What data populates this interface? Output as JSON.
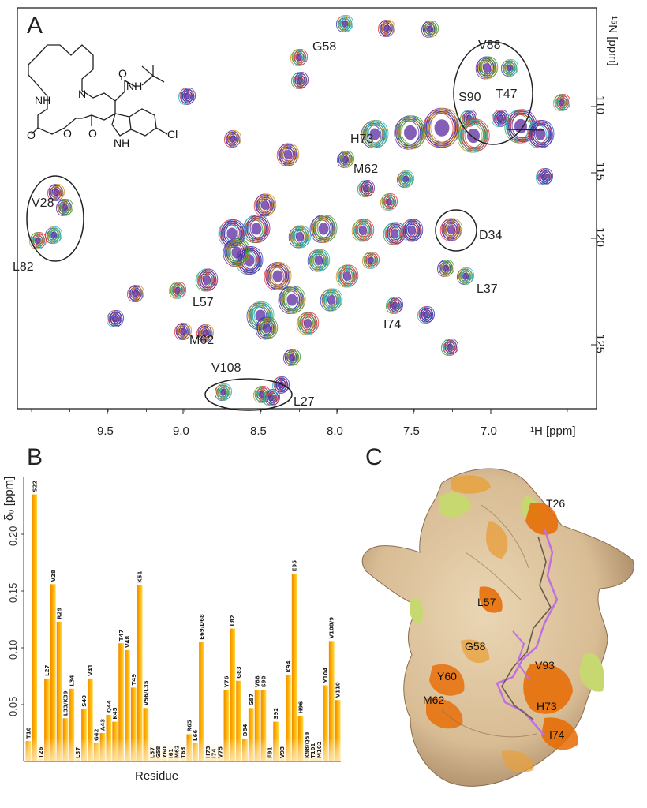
{
  "panels": {
    "a": "A",
    "b": "B",
    "c": "C"
  },
  "colors": {
    "red": "#e0303a",
    "purple": "#5a2aa0",
    "blue": "#2a3ab8",
    "orange": "#f08a00",
    "yellow": "#ffd23a",
    "surface": "#dcc4a0",
    "hot": "#e86a00",
    "green": "#c8d870",
    "ligand": "#c070e0"
  },
  "nmr": {
    "x_unit": "¹H [ppm]",
    "y_unit": "¹⁵N [ppm]",
    "x_ticks": [
      "9.5",
      "9.0",
      "8.5",
      "8.0",
      "7.5",
      "7.0"
    ],
    "y_ticks": [
      "110",
      "115",
      "120",
      "125"
    ],
    "labels": {
      "G58": "G58",
      "V88": "V88",
      "S90": "S90",
      "T47": "T47",
      "H73": "H73",
      "M62a": "M62",
      "V28": "V28",
      "L82": "L82",
      "D34": "D34",
      "L37": "L37",
      "L57": "L57",
      "I74": "I74",
      "M62b": "M62",
      "V108": "V108",
      "L27": "L27"
    },
    "structure_labels": {
      "NH1": "NH",
      "N": "N",
      "O1": "O",
      "NH2": "NH",
      "O2": "O",
      "O3": "O",
      "O4": "O",
      "NH3": "NH",
      "Cl": "Cl"
    }
  },
  "chart_data": {
    "type": "bar",
    "ylabel": "δ₀ [ppm]",
    "xlabel": "Residue",
    "ylim": [
      0,
      0.25
    ],
    "yticks": [
      "0.05",
      "0.10",
      "0.15",
      "0.20"
    ],
    "categories": [
      "T10",
      "S22",
      "T26",
      "L27",
      "V28",
      "R29",
      "L33/K39",
      "L34",
      "L37",
      "S40",
      "V41",
      "G42",
      "A43",
      "Q44",
      "K45",
      "T47",
      "V48",
      "T49",
      "K51",
      "V56/L35",
      "L57",
      "G58",
      "Y60",
      "I61",
      "M62",
      "T63",
      "R65",
      "L66",
      "E69/D68",
      "H73",
      "I74",
      "V75",
      "Y76",
      "L82",
      "G83",
      "D84",
      "G87",
      "V88",
      "S90",
      "F91",
      "S92",
      "V93",
      "K94",
      "E95",
      "H96",
      "K98/Q59",
      "T101",
      "M102",
      "Y104",
      "V108/9",
      "V110"
    ],
    "values": [
      0.018,
      0.235,
      0.0,
      0.073,
      0.156,
      0.123,
      0.038,
      0.064,
      0.0,
      0.046,
      0.073,
      0.016,
      0.025,
      0.041,
      0.035,
      0.104,
      0.098,
      0.065,
      0.155,
      0.047,
      0.0,
      0.0,
      0.0,
      0.0,
      0.0,
      0.0,
      0.024,
      0.016,
      0.105,
      0.0,
      0.0,
      0.0,
      0.063,
      0.117,
      0.071,
      0.02,
      0.047,
      0.063,
      0.063,
      0.0,
      0.035,
      0.0,
      0.076,
      0.165,
      0.04,
      0.0,
      0.0,
      0.0,
      0.067,
      0.106,
      0.054
    ]
  },
  "surface": {
    "labels": {
      "T26": "T26",
      "L57": "L57",
      "G58": "G58",
      "V93": "V93",
      "Y60": "Y60",
      "M62": "M62",
      "H73": "H73",
      "I74": "I74"
    }
  }
}
